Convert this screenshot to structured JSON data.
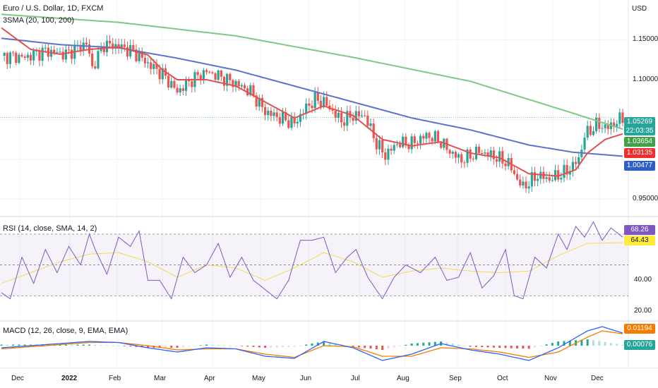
{
  "header": {
    "title": "Euro / U.S. Dollar, 1D, FXCM",
    "indicator": "3SMA (20, 100, 200)",
    "currency": "USD"
  },
  "rsi_header": "RSI (14, close, SMA, 14, 2)",
  "macd_header": "MACD (12, 26, close, 9, EMA, EMA)",
  "price_labels": [
    {
      "text": "1.05269",
      "sub": "22:03:35",
      "color": "#26a69a",
      "value": 1.05269
    },
    {
      "text": "1.03654",
      "color": "#43a047",
      "value": 1.03654
    },
    {
      "text": "1.03135",
      "color": "#ef2f2f",
      "value": 1.03135
    },
    {
      "text": "1.00477",
      "color": "#2f5ec4",
      "value": 1.00477
    }
  ],
  "rsi_labels": [
    {
      "text": "68.26",
      "color": "#7e57c2",
      "value": 68.26
    },
    {
      "text": "64.43",
      "color": "#ffeb3b",
      "value": 64.43,
      "dark": true
    }
  ],
  "macd_labels": [
    {
      "text": "0.01194",
      "color": "#f57c00",
      "value": 0.01194
    },
    {
      "text": "0.00076",
      "color": "#26a69a",
      "value": 0.00076
    }
  ],
  "chart_data": {
    "type": "candlestick",
    "price_axis": {
      "ticks": [
        "1.15000",
        "1.10000",
        "0.95000"
      ],
      "ylim": [
        0.93,
        1.2
      ]
    },
    "rsi_axis": {
      "ticks": [
        "40.00",
        "20.00"
      ],
      "ylim": [
        15,
        80
      ],
      "bands": [
        70,
        50,
        30
      ]
    },
    "x_ticks": [
      "Dec",
      "2022",
      "Feb",
      "Mar",
      "Apr",
      "May",
      "Jun",
      "Jul",
      "Aug",
      "Sep",
      "Oct",
      "Nov",
      "Dec"
    ],
    "close_series": [
      [
        0,
        1.13
      ],
      [
        8,
        1.128
      ],
      [
        15,
        1.136
      ],
      [
        22,
        1.132
      ],
      [
        29,
        1.146
      ],
      [
        31,
        1.115
      ],
      [
        35,
        1.144
      ],
      [
        40,
        1.142
      ],
      [
        45,
        1.135
      ],
      [
        50,
        1.12
      ],
      [
        55,
        1.107
      ],
      [
        60,
        1.085
      ],
      [
        65,
        1.1
      ],
      [
        70,
        1.11
      ],
      [
        75,
        1.103
      ],
      [
        80,
        1.095
      ],
      [
        85,
        1.085
      ],
      [
        90,
        1.06
      ],
      [
        95,
        1.052
      ],
      [
        100,
        1.045
      ],
      [
        104,
        1.065
      ],
      [
        107,
        1.075
      ],
      [
        110,
        1.072
      ],
      [
        113,
        1.06
      ],
      [
        116,
        1.048
      ],
      [
        120,
        1.055
      ],
      [
        124,
        1.055
      ],
      [
        128,
        1.02
      ],
      [
        131,
        1.005
      ],
      [
        135,
        1.02
      ],
      [
        140,
        1.02
      ],
      [
        145,
        1.03
      ],
      [
        149,
        1.025
      ],
      [
        153,
        1.01
      ],
      [
        157,
        0.999
      ],
      [
        163,
        1.01
      ],
      [
        168,
        1.004
      ],
      [
        173,
        0.995
      ],
      [
        176,
        0.975
      ],
      [
        178,
        0.965
      ],
      [
        183,
        0.98
      ],
      [
        187,
        0.975
      ],
      [
        193,
        0.985
      ],
      [
        197,
        1.0
      ],
      [
        199,
        1.03
      ],
      [
        203,
        1.043
      ],
      [
        207,
        1.04
      ],
      [
        212,
        1.052
      ]
    ],
    "sma20": [
      [
        0,
        1.165
      ],
      [
        10,
        1.138
      ],
      [
        20,
        1.132
      ],
      [
        30,
        1.138
      ],
      [
        40,
        1.141
      ],
      [
        50,
        1.131
      ],
      [
        55,
        1.112
      ],
      [
        60,
        1.1
      ],
      [
        70,
        1.1
      ],
      [
        80,
        1.092
      ],
      [
        90,
        1.072
      ],
      [
        100,
        1.052
      ],
      [
        110,
        1.067
      ],
      [
        120,
        1.055
      ],
      [
        130,
        1.025
      ],
      [
        140,
        1.017
      ],
      [
        150,
        1.022
      ],
      [
        160,
        1.008
      ],
      [
        170,
        1.002
      ],
      [
        180,
        0.982
      ],
      [
        190,
        0.979
      ],
      [
        196,
        0.987
      ],
      [
        200,
        1.008
      ],
      [
        206,
        1.025
      ],
      [
        212,
        1.032
      ]
    ],
    "sma100": [
      [
        0,
        1.152
      ],
      [
        20,
        1.144
      ],
      [
        40,
        1.14
      ],
      [
        60,
        1.127
      ],
      [
        80,
        1.112
      ],
      [
        100,
        1.092
      ],
      [
        120,
        1.072
      ],
      [
        140,
        1.052
      ],
      [
        160,
        1.037
      ],
      [
        180,
        1.018
      ],
      [
        195,
        1.009
      ],
      [
        212,
        1.004
      ]
    ],
    "sma200": [
      [
        0,
        1.182
      ],
      [
        40,
        1.172
      ],
      [
        80,
        1.155
      ],
      [
        120,
        1.128
      ],
      [
        160,
        1.098
      ],
      [
        195,
        1.058
      ],
      [
        212,
        1.038
      ]
    ],
    "rsi": [
      [
        0,
        32
      ],
      [
        3,
        28
      ],
      [
        7,
        55
      ],
      [
        11,
        38
      ],
      [
        15,
        60
      ],
      [
        19,
        45
      ],
      [
        23,
        62
      ],
      [
        27,
        50
      ],
      [
        30,
        70
      ],
      [
        32,
        60
      ],
      [
        36,
        44
      ],
      [
        40,
        68
      ],
      [
        44,
        62
      ],
      [
        47,
        72
      ],
      [
        50,
        40
      ],
      [
        54,
        40
      ],
      [
        58,
        28
      ],
      [
        62,
        55
      ],
      [
        66,
        45
      ],
      [
        70,
        50
      ],
      [
        74,
        64
      ],
      [
        78,
        42
      ],
      [
        82,
        55
      ],
      [
        86,
        40
      ],
      [
        90,
        34
      ],
      [
        94,
        28
      ],
      [
        98,
        40
      ],
      [
        102,
        66
      ],
      [
        106,
        66
      ],
      [
        110,
        68
      ],
      [
        114,
        45
      ],
      [
        118,
        55
      ],
      [
        121,
        60
      ],
      [
        125,
        42
      ],
      [
        130,
        28
      ],
      [
        134,
        42
      ],
      [
        138,
        50
      ],
      [
        143,
        45
      ],
      [
        148,
        55
      ],
      [
        152,
        40
      ],
      [
        156,
        42
      ],
      [
        160,
        58
      ],
      [
        164,
        35
      ],
      [
        168,
        43
      ],
      [
        172,
        60
      ],
      [
        175,
        30
      ],
      [
        178,
        28
      ],
      [
        182,
        55
      ],
      [
        186,
        48
      ],
      [
        190,
        70
      ],
      [
        193,
        60
      ],
      [
        196,
        75
      ],
      [
        199,
        68
      ],
      [
        202,
        78
      ],
      [
        205,
        66
      ],
      [
        208,
        74
      ],
      [
        212,
        68
      ]
    ],
    "rsi_sma": [
      [
        0,
        38
      ],
      [
        10,
        45
      ],
      [
        20,
        52
      ],
      [
        30,
        57
      ],
      [
        40,
        58
      ],
      [
        50,
        52
      ],
      [
        60,
        42
      ],
      [
        70,
        50
      ],
      [
        80,
        48
      ],
      [
        90,
        40
      ],
      [
        100,
        48
      ],
      [
        110,
        58
      ],
      [
        120,
        52
      ],
      [
        130,
        42
      ],
      [
        140,
        46
      ],
      [
        150,
        48
      ],
      [
        160,
        46
      ],
      [
        170,
        45
      ],
      [
        180,
        46
      ],
      [
        190,
        56
      ],
      [
        200,
        64
      ],
      [
        212,
        64.4
      ]
    ],
    "macd": [
      [
        0,
        -0.002
      ],
      [
        10,
        0.0
      ],
      [
        20,
        0.002
      ],
      [
        30,
        0.004
      ],
      [
        40,
        0.003
      ],
      [
        50,
        -0.002
      ],
      [
        60,
        -0.006
      ],
      [
        70,
        -0.002
      ],
      [
        80,
        -0.003
      ],
      [
        90,
        -0.01
      ],
      [
        100,
        -0.012
      ],
      [
        110,
        0.004
      ],
      [
        120,
        -0.002
      ],
      [
        130,
        -0.014
      ],
      [
        140,
        -0.008
      ],
      [
        150,
        0.002
      ],
      [
        160,
        -0.004
      ],
      [
        170,
        -0.008
      ],
      [
        180,
        -0.014
      ],
      [
        190,
        -0.002
      ],
      [
        200,
        0.014
      ],
      [
        205,
        0.018
      ],
      [
        212,
        0.0119
      ]
    ],
    "macd_signal": [
      [
        0,
        -0.003
      ],
      [
        10,
        -0.001
      ],
      [
        20,
        0.001
      ],
      [
        30,
        0.003
      ],
      [
        40,
        0.003
      ],
      [
        50,
        0.0
      ],
      [
        60,
        -0.004
      ],
      [
        70,
        -0.003
      ],
      [
        80,
        -0.003
      ],
      [
        90,
        -0.008
      ],
      [
        100,
        -0.011
      ],
      [
        110,
        0.0
      ],
      [
        120,
        -0.001
      ],
      [
        130,
        -0.01
      ],
      [
        140,
        -0.01
      ],
      [
        150,
        -0.002
      ],
      [
        160,
        -0.003
      ],
      [
        170,
        -0.006
      ],
      [
        180,
        -0.011
      ],
      [
        190,
        -0.006
      ],
      [
        200,
        0.008
      ],
      [
        205,
        0.014
      ],
      [
        212,
        0.0112
      ]
    ]
  }
}
